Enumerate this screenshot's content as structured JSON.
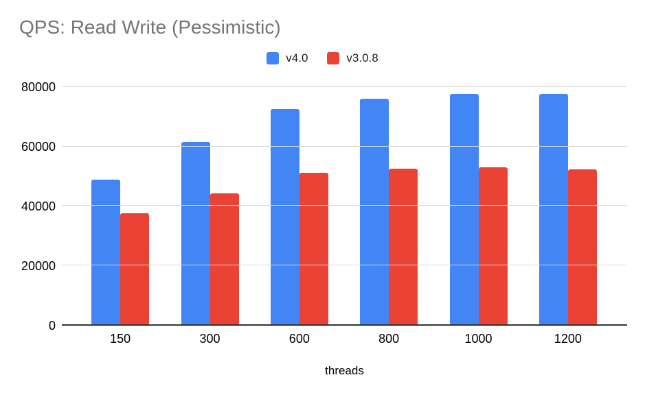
{
  "background_color": "#ffffff",
  "colors": {
    "title": "#757575",
    "axis_labels": "#000000",
    "gridline": "#d6d6d6",
    "axis_line": "#333333",
    "series_v4": "#4285f4",
    "series_v308": "#ea4335"
  },
  "chart_data": {
    "type": "bar",
    "title": "QPS: Read Write (Pessimistic)",
    "xlabel": "threads",
    "ylabel": "",
    "categories": [
      "150",
      "300",
      "600",
      "800",
      "1000",
      "1200"
    ],
    "series": [
      {
        "name": "v4.0",
        "color": "#4285f4",
        "values": [
          48500,
          61100,
          72300,
          75600,
          77300,
          77200
        ]
      },
      {
        "name": "v3.0.8",
        "color": "#ea4335",
        "values": [
          37300,
          43900,
          50700,
          52100,
          52600,
          52000
        ]
      }
    ],
    "ylim": [
      0,
      80000
    ],
    "ytick_interval": 20000,
    "yticks": [
      "0",
      "20000",
      "40000",
      "60000",
      "80000"
    ],
    "grid": true,
    "legend_position": "top-center"
  }
}
